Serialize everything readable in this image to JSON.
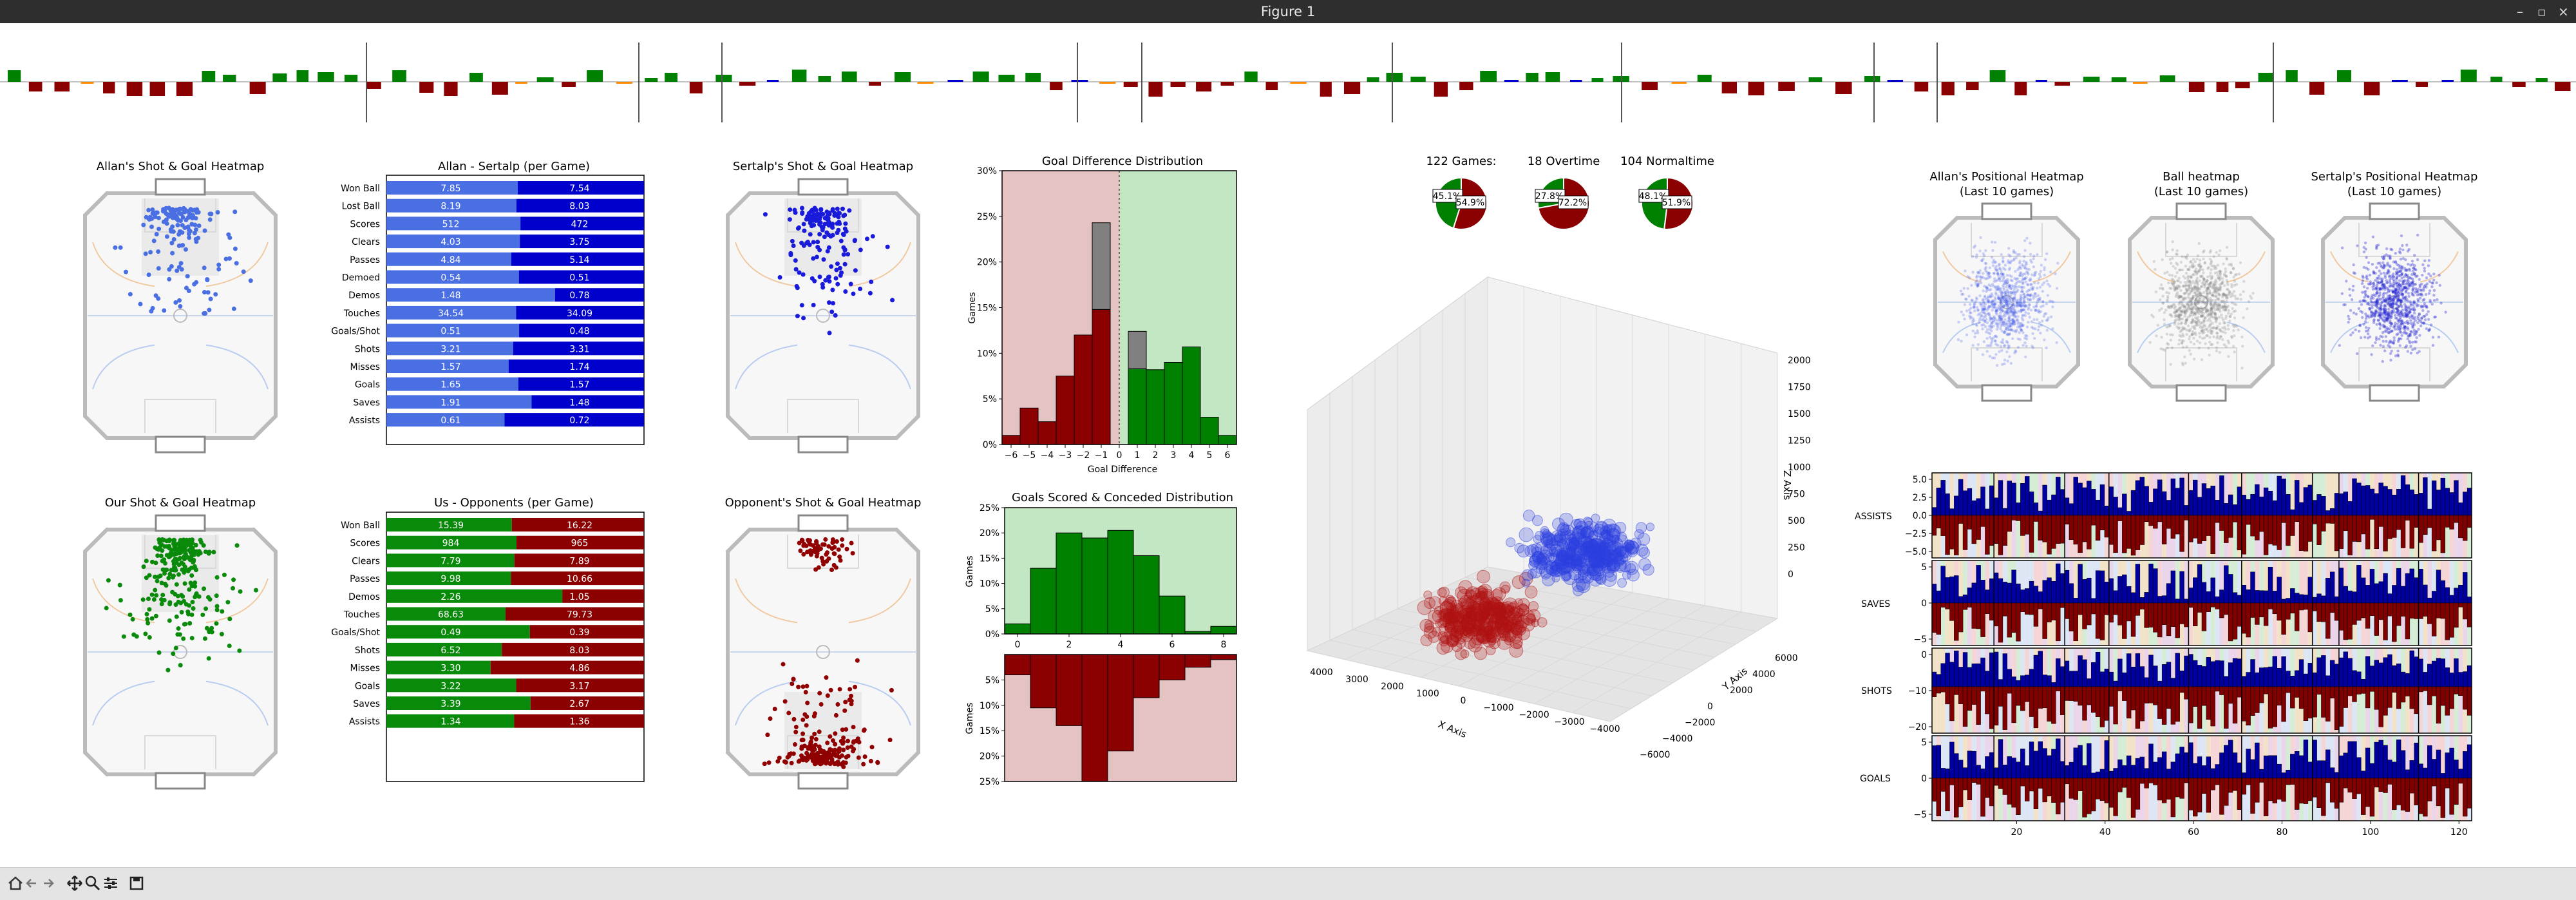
{
  "window": {
    "title": "Figure 1"
  },
  "toolbar": {
    "icons": [
      "home-icon",
      "back-icon",
      "forward-icon",
      "pan-icon",
      "zoom-icon",
      "configure-icon",
      "save-icon"
    ]
  },
  "colors": {
    "green": "#008000",
    "red": "#8b0000",
    "blue": "#0000cd",
    "lightblue": "#4a6fe3",
    "orange": "#ff8c00",
    "shade_red": "#e6c3c3",
    "shade_green": "#c3e6c3",
    "gray": "#808080"
  },
  "heatmaps": {
    "allan_shot": {
      "title": "Allan's Shot & Goal Heatmap"
    },
    "sertalp_shot": {
      "title": "Sertalp's Shot & Goal Heatmap"
    },
    "our_shot": {
      "title": "Our Shot & Goal Heatmap"
    },
    "opp_shot": {
      "title": "Opponent's Shot & Goal Heatmap"
    }
  },
  "compare1": {
    "title": "Allan - Sertalp (per Game)",
    "rows": [
      {
        "label": "Won Ball",
        "left": "7.85",
        "right": "7.54",
        "lv": 7.85,
        "rv": 7.54
      },
      {
        "label": "Lost Ball",
        "left": "8.19",
        "right": "8.03",
        "lv": 8.19,
        "rv": 8.03
      },
      {
        "label": "Scores",
        "left": "512",
        "right": "472",
        "lv": 512,
        "rv": 472
      },
      {
        "label": "Clears",
        "left": "4.03",
        "right": "3.75",
        "lv": 4.03,
        "rv": 3.75
      },
      {
        "label": "Passes",
        "left": "4.84",
        "right": "5.14",
        "lv": 4.84,
        "rv": 5.14
      },
      {
        "label": "Demoed",
        "left": "0.54",
        "right": "0.51",
        "lv": 0.54,
        "rv": 0.51
      },
      {
        "label": "Demos",
        "left": "1.48",
        "right": "0.78",
        "lv": 1.48,
        "rv": 0.78
      },
      {
        "label": "Touches",
        "left": "34.54",
        "right": "34.09",
        "lv": 34.54,
        "rv": 34.09
      },
      {
        "label": "Goals/Shot",
        "left": "0.51",
        "right": "0.48",
        "lv": 0.51,
        "rv": 0.48
      },
      {
        "label": "Shots",
        "left": "3.21",
        "right": "3.31",
        "lv": 3.21,
        "rv": 3.31
      },
      {
        "label": "Misses",
        "left": "1.57",
        "right": "1.74",
        "lv": 1.57,
        "rv": 1.74
      },
      {
        "label": "Goals",
        "left": "1.65",
        "right": "1.57",
        "lv": 1.65,
        "rv": 1.57
      },
      {
        "label": "Saves",
        "left": "1.91",
        "right": "1.48",
        "lv": 1.91,
        "rv": 1.48
      },
      {
        "label": "Assists",
        "left": "0.61",
        "right": "0.72",
        "lv": 0.61,
        "rv": 0.72
      }
    ]
  },
  "compare2": {
    "title": "Us - Opponents (per Game)",
    "rows": [
      {
        "label": "Won Ball",
        "left": "15.39",
        "right": "16.22",
        "lv": 15.39,
        "rv": 16.22
      },
      {
        "label": "Scores",
        "left": "984",
        "right": "965",
        "lv": 984,
        "rv": 965
      },
      {
        "label": "Clears",
        "left": "7.79",
        "right": "7.89",
        "lv": 7.79,
        "rv": 7.89
      },
      {
        "label": "Passes",
        "left": "9.98",
        "right": "10.66",
        "lv": 9.98,
        "rv": 10.66
      },
      {
        "label": "Demos",
        "left": "2.26",
        "right": "1.05",
        "lv": 2.26,
        "rv": 1.05
      },
      {
        "label": "Touches",
        "left": "68.63",
        "right": "79.73",
        "lv": 68.63,
        "rv": 79.73
      },
      {
        "label": "Goals/Shot",
        "left": "0.49",
        "right": "0.39",
        "lv": 0.49,
        "rv": 0.39
      },
      {
        "label": "Shots",
        "left": "6.52",
        "right": "8.03",
        "lv": 6.52,
        "rv": 8.03
      },
      {
        "label": "Misses",
        "left": "3.30",
        "right": "4.86",
        "lv": 3.3,
        "rv": 4.86
      },
      {
        "label": "Goals",
        "left": "3.22",
        "right": "3.17",
        "lv": 3.22,
        "rv": 3.17
      },
      {
        "label": "Saves",
        "left": "3.39",
        "right": "2.67",
        "lv": 3.39,
        "rv": 2.67
      },
      {
        "label": "Assists",
        "left": "1.34",
        "right": "1.36",
        "lv": 1.34,
        "rv": 1.36
      }
    ]
  },
  "goal_diff": {
    "title": "Goal Difference Distribution",
    "xlabel": "Goal Difference",
    "ylabel": "Games",
    "xticks": [
      "−6",
      "−5",
      "−4",
      "−3",
      "−2",
      "−1",
      "0",
      "1",
      "2",
      "3",
      "4",
      "5",
      "6"
    ],
    "yticks": [
      "0%",
      "5%",
      "10%",
      "15%",
      "20%",
      "25%",
      "30%"
    ],
    "bins": [
      -6,
      -5,
      -4,
      -3,
      -2,
      -1,
      1,
      2,
      3,
      4,
      5,
      6
    ],
    "values": [
      1.0,
      4.0,
      2.5,
      7.5,
      12.0,
      14.8,
      8.3,
      8.2,
      9.0,
      10.7,
      3.0,
      1.0
    ],
    "overtime": {
      "bins": [
        -1,
        1
      ],
      "values": [
        9.5,
        4.1
      ]
    }
  },
  "scored_conceded": {
    "title": "Goals Scored & Conceded Distribution",
    "ylabel": "Games",
    "top_yticks": [
      "0%",
      "5%",
      "10%",
      "15%",
      "20%",
      "25%"
    ],
    "bottom_yticks": [
      "5%",
      "10%",
      "15%",
      "20%",
      "25%"
    ],
    "xticks": [
      "0",
      "2",
      "4",
      "6",
      "8"
    ],
    "scored": [
      2.0,
      13.0,
      20.0,
      19.0,
      20.5,
      15.5,
      7.5,
      0.5,
      1.5
    ],
    "conceded": [
      4.0,
      10.5,
      14.0,
      25.0,
      19.0,
      8.5,
      5.0,
      2.5,
      1.0
    ]
  },
  "pies": [
    {
      "title": "122 Games:",
      "win": "45.1%",
      "loss": "54.9%",
      "w": 45.1
    },
    {
      "title": "18 Overtime",
      "win": "27.8%",
      "loss": "72.2%",
      "w": 27.8
    },
    {
      "title": "104 Normaltime",
      "win": "48.1%",
      "loss": "51.9%",
      "w": 48.1
    }
  ],
  "scatter3d": {
    "xlabel": "X Axis",
    "ylabel": "Y Axis",
    "zlabel": "Z Axis",
    "xticks": [
      "4000",
      "3000",
      "2000",
      "1000",
      "0",
      "−1000",
      "−2000",
      "−3000",
      "−4000"
    ],
    "yticks": [
      "−6000",
      "−4000",
      "−2000",
      "0",
      "2000",
      "4000",
      "6000"
    ],
    "zticks": [
      "0",
      "250",
      "500",
      "750",
      "1000",
      "1250",
      "1500",
      "1750",
      "2000"
    ]
  },
  "positional": [
    {
      "title1": "Allan's Positional Heatmap",
      "title2": "(Last 10 games)"
    },
    {
      "title1": "Ball heatmap",
      "title2": "(Last 10 games)"
    },
    {
      "title1": "Sertalp's Positional Heatmap",
      "title2": "(Last 10 games)"
    }
  ],
  "timeseries": {
    "panels": [
      {
        "label": "ASSISTS",
        "yticks": [
          "5.0",
          "2.5",
          "0.0",
          "−2.5",
          "−5.0"
        ]
      },
      {
        "label": "SAVES",
        "yticks": [
          "5",
          "0",
          "−5"
        ]
      },
      {
        "label": "SHOTS",
        "yticks": [
          "0",
          "−10",
          "−20"
        ]
      },
      {
        "label": "GOALS",
        "yticks": [
          "5",
          "0",
          "−5"
        ]
      }
    ],
    "xticks": [
      "20",
      "40",
      "60",
      "80",
      "100",
      "120"
    ]
  }
}
